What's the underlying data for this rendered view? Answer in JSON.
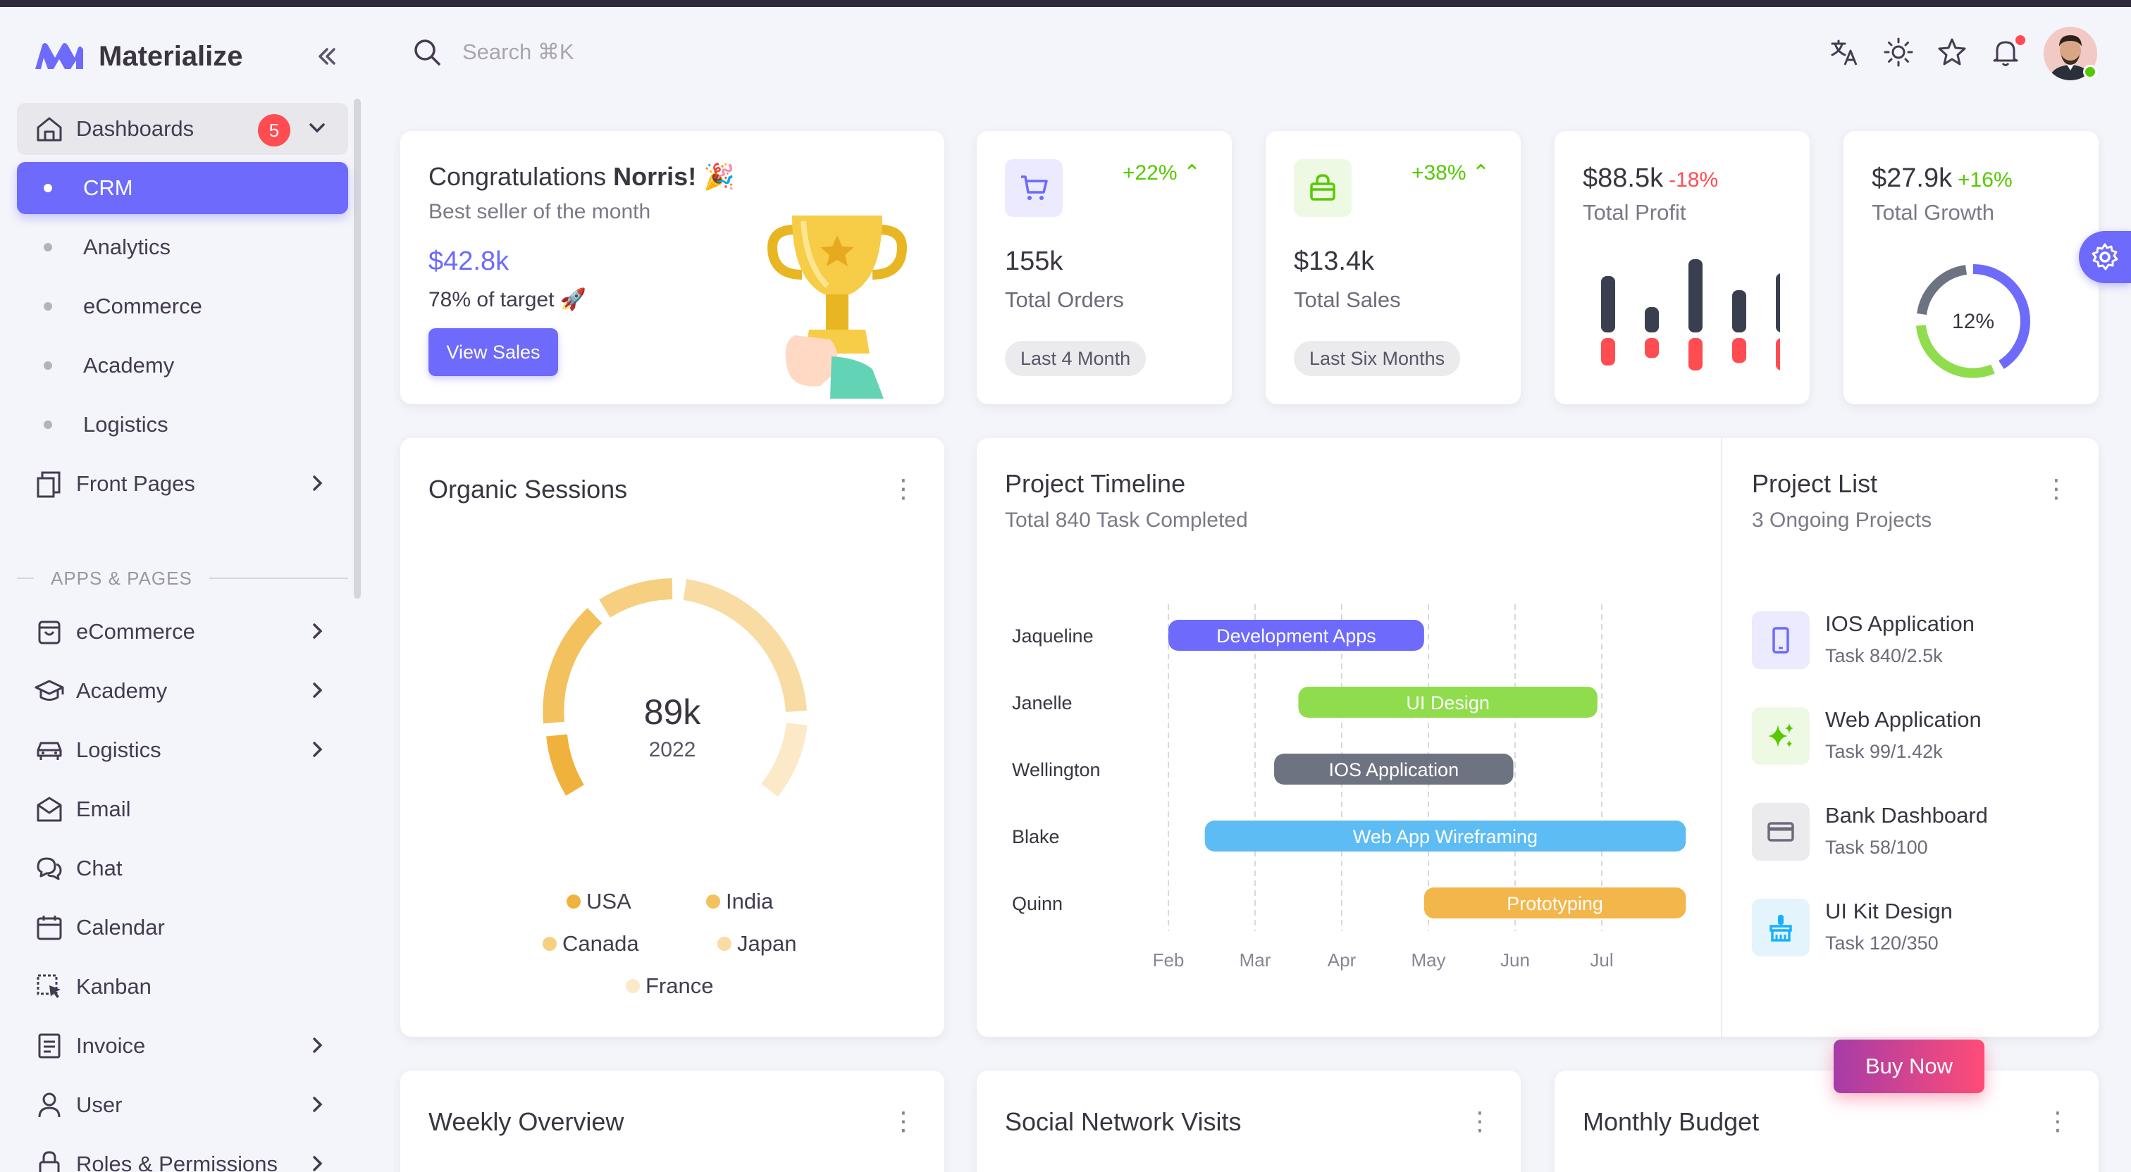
{
  "app": {
    "name": "Materialize"
  },
  "sidebar": {
    "dashboards": {
      "label": "Dashboards",
      "badge": "5"
    },
    "dashboard_items": [
      "CRM",
      "Analytics",
      "eCommerce",
      "Academy",
      "Logistics"
    ],
    "front_pages": "Front Pages",
    "section_label": "APPS & PAGES",
    "apps": [
      "eCommerce",
      "Academy",
      "Logistics",
      "Email",
      "Chat",
      "Calendar",
      "Kanban",
      "Invoice",
      "User",
      "Roles & Permissions"
    ]
  },
  "search": {
    "placeholder": "Search ⌘K"
  },
  "congrats": {
    "title_prefix": "Congratulations ",
    "name": "Norris!",
    "emoji": " 🎉",
    "subtitle": "Best seller of the month",
    "amount": "$42.8k",
    "target": "78% of target 🚀",
    "button": "View Sales"
  },
  "orders": {
    "change": "+22%",
    "value": "155k",
    "label": "Total Orders",
    "chip": "Last 4 Month"
  },
  "sales": {
    "change": "+38%",
    "value": "$13.4k",
    "label": "Total Sales",
    "chip": "Last Six Months"
  },
  "profit": {
    "value": "$88.5k",
    "change": "-18%",
    "label": "Total Profit",
    "bars_top": [
      40,
      18,
      52,
      30,
      42
    ],
    "bars_bottom": [
      22,
      16,
      26,
      20,
      26
    ]
  },
  "growth": {
    "value": "$27.9k",
    "change": "+16%",
    "label": "Total Growth",
    "center": "12%"
  },
  "organic": {
    "title": "Organic Sessions",
    "value": "89k",
    "year": "2022",
    "legend": [
      {
        "name": "USA",
        "color": "#f0b23c"
      },
      {
        "name": "India",
        "color": "#f3c15e"
      },
      {
        "name": "Canada",
        "color": "#f6cf80"
      },
      {
        "name": "Japan",
        "color": "#f8dca3"
      },
      {
        "name": "France",
        "color": "#fbe9c8"
      }
    ]
  },
  "timeline": {
    "title": "Project Timeline",
    "subtitle": "Total 840 Task Completed",
    "months": [
      "Feb",
      "Mar",
      "Apr",
      "May",
      "Jun",
      "Jul"
    ],
    "rows": [
      {
        "person": "Jaqueline",
        "task": "Development Apps",
        "color": "#6d6afc",
        "start": 0.0,
        "end": 2.95
      },
      {
        "person": "Janelle",
        "task": "UI Design",
        "color": "#8fdd4c",
        "start": 1.5,
        "end": 4.95
      },
      {
        "person": "Wellington",
        "task": "IOS Application",
        "color": "#6d7380",
        "start": 1.22,
        "end": 3.98
      },
      {
        "person": "Blake",
        "task": "Web App Wireframing",
        "color": "#5cbcf3",
        "start": 0.42,
        "end": 5.97
      },
      {
        "person": "Quinn",
        "task": "Prototyping",
        "color": "#f3b64a",
        "start": 2.95,
        "end": 5.97
      }
    ]
  },
  "project_list": {
    "title": "Project List",
    "subtitle": "3 Ongoing Projects",
    "items": [
      {
        "name": "IOS Application",
        "task": "Task 840/2.5k",
        "icon": "phone-icon",
        "bg": "#ebeafe",
        "fg": "#6d6afc"
      },
      {
        "name": "Web Application",
        "task": "Task 99/1.42k",
        "icon": "sparkle-icon",
        "bg": "#eef9e4",
        "fg": "#56ca00"
      },
      {
        "name": "Bank Dashboard",
        "task": "Task 58/100",
        "icon": "card-icon",
        "bg": "#ebebee",
        "fg": "#6d6a7c"
      },
      {
        "name": "UI Kit Design",
        "task": "Task 120/350",
        "icon": "brush-icon",
        "bg": "#e4f4fd",
        "fg": "#16b1ff"
      }
    ]
  },
  "bottom": {
    "weekly": "Weekly Overview",
    "social": "Social Network Visits",
    "budget": "Monthly Budget"
  },
  "buy_now": "Buy Now"
}
